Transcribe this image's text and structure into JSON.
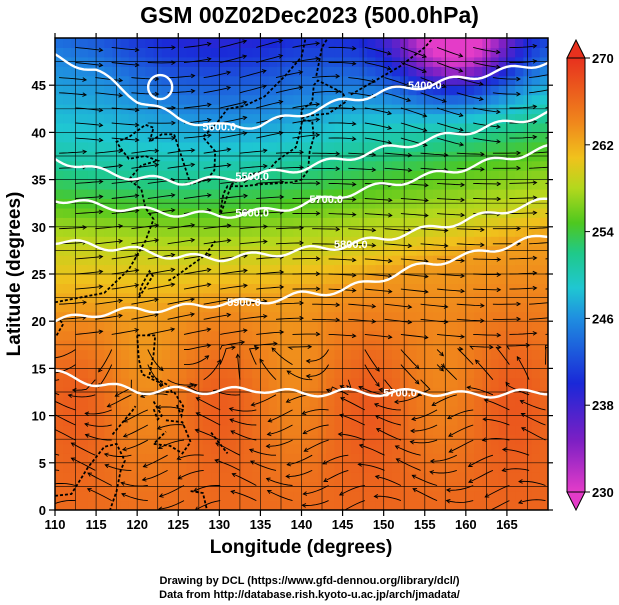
{
  "title": "GSM 00Z02Dec2023 (500.0hPa)",
  "xlabel": "Longitude (degrees)",
  "ylabel": "Latitude  (degrees)",
  "x_ticks": [
    "110",
    "115",
    "120",
    "125",
    "130",
    "135",
    "140",
    "145",
    "150",
    "155",
    "160",
    "165"
  ],
  "y_ticks": [
    "0",
    "5",
    "10",
    "15",
    "20",
    "25",
    "30",
    "35",
    "40",
    "45"
  ],
  "colorbar_ticks": [
    "270",
    "262",
    "254",
    "246",
    "238",
    "230"
  ],
  "colorbar_range": [
    230,
    270
  ],
  "contour_labels": [
    "5400.0",
    "5600.0",
    "5700.0",
    "5800.0",
    "5500.0",
    "5600.0",
    "5900.0",
    "5700.0"
  ],
  "credit_line1": "Drawing by DCL (https://www.gfd-dennou.org/library/dcl/)",
  "credit_line2": "Data from http://database.rish.kyoto-u.ac.jp/arch/jmadata/",
  "chart_data": {
    "type": "heatmap",
    "title": "GSM 00Z02Dec2023 (500.0hPa)",
    "xlabel": "Longitude (degrees)",
    "ylabel": "Latitude  (degrees)",
    "xlim": [
      110,
      170
    ],
    "ylim": [
      0,
      50
    ],
    "colorbar": {
      "min": 230,
      "max": 270,
      "ticks": [
        270,
        262,
        254,
        246,
        238,
        230
      ]
    },
    "contour_levels": [
      5400,
      5500,
      5600,
      5700,
      5800,
      5900
    ],
    "contours": [
      {
        "level": 5900,
        "lon": [
          110,
          115,
          120,
          125,
          130,
          135,
          140,
          145,
          150,
          155,
          160,
          165,
          170
        ],
        "lat": [
          14.5,
          13.4,
          12.6,
          12.7,
          12.6,
          12.8,
          12.3,
          12.5,
          12.4,
          12.5,
          12.2,
          12.3,
          12.6
        ]
      },
      {
        "level": 5800,
        "lon": [
          110,
          115,
          120,
          125,
          130,
          135,
          140,
          145,
          150,
          155,
          160,
          165,
          170
        ],
        "lat": [
          20.0,
          20.8,
          21.2,
          21.4,
          21.9,
          22.1,
          22.8,
          23.3,
          24.6,
          26.0,
          26.9,
          28.0,
          29.1
        ]
      },
      {
        "level": 5700,
        "lon": [
          110,
          115,
          120,
          125,
          130,
          135,
          140,
          145,
          150,
          155,
          160,
          165,
          170
        ],
        "lat": [
          28.5,
          28.0,
          27.5,
          26.8,
          26.7,
          27.0,
          27.5,
          28.0,
          28.8,
          29.7,
          30.7,
          31.8,
          32.8
        ]
      },
      {
        "level": 5600,
        "lon": [
          110,
          115,
          120,
          125,
          130,
          135,
          140,
          145,
          150,
          155,
          160,
          165,
          170
        ],
        "lat": [
          33.0,
          32.3,
          31.8,
          31.4,
          31.2,
          31.6,
          32.3,
          33.4,
          34.4,
          35.3,
          36.3,
          37.3,
          38.3
        ]
      },
      {
        "level": 5500,
        "lon": [
          110,
          115,
          120,
          125,
          130,
          135,
          140,
          145,
          150,
          155,
          160,
          165,
          170
        ],
        "lat": [
          37.2,
          36.0,
          35.2,
          34.8,
          35.0,
          35.5,
          36.2,
          37.2,
          38.2,
          39.1,
          40.1,
          41.0,
          42.0
        ]
      },
      {
        "level": 5400,
        "lon": [
          110,
          115,
          120,
          125,
          130,
          135,
          140,
          145,
          150,
          155,
          160,
          165,
          170
        ],
        "lat": [
          48.0,
          46.5,
          43.5,
          41.5,
          40.6,
          40.8,
          42.0,
          43.3,
          44.3,
          45.0,
          45.8,
          46.6,
          47.5
        ]
      }
    ],
    "field": {
      "lat": [
        0,
        10,
        20,
        30,
        40,
        50
      ],
      "lon": [
        110,
        125,
        140,
        155,
        170
      ],
      "values": [
        [
          265,
          265,
          266,
          267,
          267
        ],
        [
          265,
          265,
          266,
          267,
          267
        ],
        [
          264,
          264,
          265,
          266,
          266
        ],
        [
          258,
          259,
          260,
          261,
          262
        ],
        [
          248,
          249,
          251,
          253,
          255
        ],
        [
          243,
          242,
          245,
          236,
          240
        ]
      ]
    },
    "wind": "streamlines (westerly jet 25–40N, easterly trades south of 15N)"
  }
}
